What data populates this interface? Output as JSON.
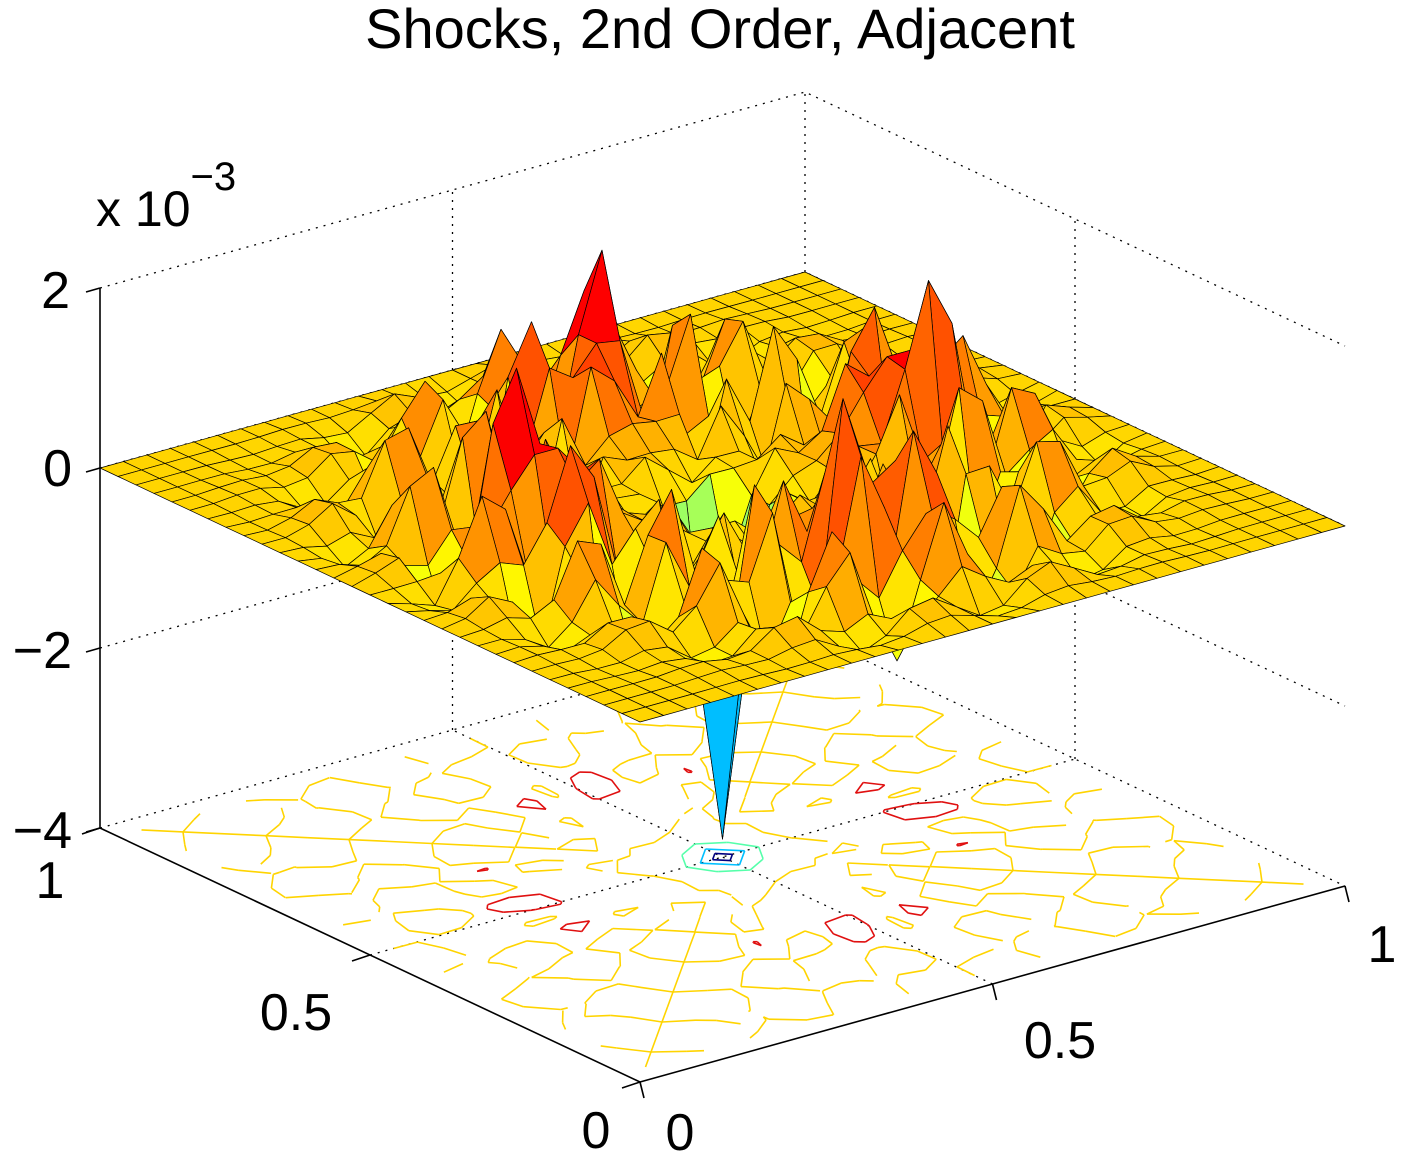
{
  "chart_data": {
    "type": "surface",
    "title": "Shocks, 2nd Order, Adjacent",
    "xlabel": "",
    "ylabel": "",
    "zlabel": "",
    "z_exponent": "x 10−3",
    "x_ticks": [
      "0",
      "0.5",
      "1"
    ],
    "y_ticks": [
      "0",
      "0.5",
      "1"
    ],
    "z_ticks": [
      "−4",
      "−2",
      "0",
      "2"
    ],
    "xlim": [
      0,
      1
    ],
    "ylim": [
      0,
      1
    ],
    "zlim": [
      -0.004,
      0.002
    ],
    "grid": true,
    "colormap": "jet",
    "contour_levels": [
      -0.003,
      -0.002,
      -0.001,
      0,
      0.001
    ],
    "contour_colors": [
      "#00007f",
      "#00bfff",
      "#55ffaa",
      "#ffd400",
      "#e01010"
    ],
    "surface_points": [
      {
        "x": 0.5,
        "y": 0.5,
        "z": -0.0038
      },
      {
        "x": 0.5,
        "y": 0.25,
        "z": 0.0012
      },
      {
        "x": 0.25,
        "y": 0.5,
        "z": 0.0013
      },
      {
        "x": 0.5,
        "y": 0.75,
        "z": 0.0012
      },
      {
        "x": 0.75,
        "y": 0.5,
        "z": 0.0012
      },
      {
        "x": 0.3,
        "y": 0.3,
        "z": -0.0008
      },
      {
        "x": 0.7,
        "y": 0.7,
        "z": -0.0008
      },
      {
        "x": 0.85,
        "y": 0.85,
        "z": 0.0009
      },
      {
        "x": 0.15,
        "y": 0.15,
        "z": -0.0012
      },
      {
        "x": 0.0,
        "y": 0.0,
        "z": 0.0
      },
      {
        "x": 1.0,
        "y": 1.0,
        "z": 0.0
      }
    ],
    "series": []
  }
}
